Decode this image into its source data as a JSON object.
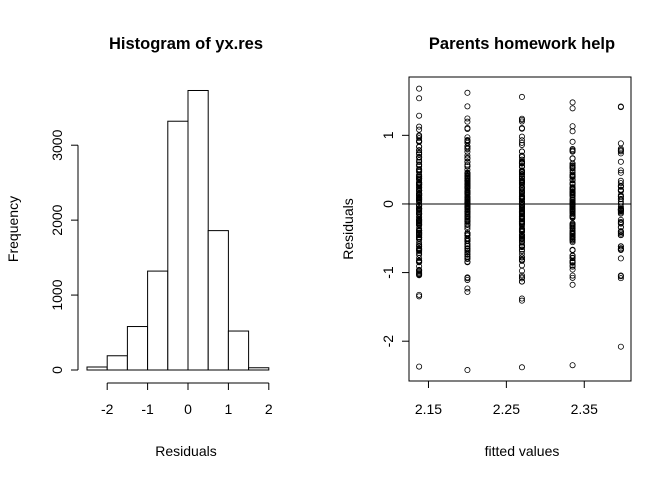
{
  "chart_data": [
    {
      "type": "histogram",
      "title": "Histogram of yx.res",
      "xlabel": "Residuals",
      "ylabel": "Frequency",
      "xlim": [
        -2.5,
        2.5
      ],
      "ylim": [
        0,
        3750
      ],
      "x_ticks": [
        -2,
        -1,
        0,
        1,
        2
      ],
      "x_tick_labels": [
        "-2",
        "-1",
        "0",
        "1",
        "2"
      ],
      "y_ticks": [
        0,
        1000,
        2000,
        3000
      ],
      "y_tick_labels": [
        "0",
        "1000",
        "2000",
        "3000"
      ],
      "bins": [
        {
          "from": -2.5,
          "to": -2.0,
          "count": 40
        },
        {
          "from": -2.0,
          "to": -1.5,
          "count": 190
        },
        {
          "from": -1.5,
          "to": -1.0,
          "count": 580
        },
        {
          "from": -1.0,
          "to": -0.5,
          "count": 1320
        },
        {
          "from": -0.5,
          "to": 0.0,
          "count": 3320
        },
        {
          "from": 0.0,
          "to": 0.5,
          "count": 3730
        },
        {
          "from": 0.5,
          "to": 1.0,
          "count": 1860
        },
        {
          "from": 1.0,
          "to": 1.5,
          "count": 520
        },
        {
          "from": 1.5,
          "to": 2.0,
          "count": 30
        }
      ]
    },
    {
      "type": "scatter",
      "title": "Parents homework help",
      "xlabel": "fitted values",
      "ylabel": "Residuals",
      "xlim": [
        2.125,
        2.41
      ],
      "ylim": [
        -2.58,
        1.85
      ],
      "x_ticks": [
        2.15,
        2.25,
        2.35
      ],
      "x_tick_labels": [
        "2.15",
        "2.25",
        "2.35"
      ],
      "y_ticks": [
        -2,
        -1,
        0,
        1
      ],
      "y_tick_labels": [
        "-2",
        "-1",
        "0",
        "1"
      ],
      "reference_line_y": 0,
      "groups": [
        {
          "x": 2.138,
          "y_min": -2.37,
          "y_max": 1.68,
          "n": 170
        },
        {
          "x": 2.2,
          "y_min": -2.42,
          "y_max": 1.62,
          "n": 160
        },
        {
          "x": 2.27,
          "y_min": -2.38,
          "y_max": 1.56,
          "n": 150
        },
        {
          "x": 2.335,
          "y_min": -2.35,
          "y_max": 1.48,
          "n": 130
        },
        {
          "x": 2.397,
          "y_min": -2.08,
          "y_max": 1.42,
          "n": 60
        }
      ]
    }
  ]
}
